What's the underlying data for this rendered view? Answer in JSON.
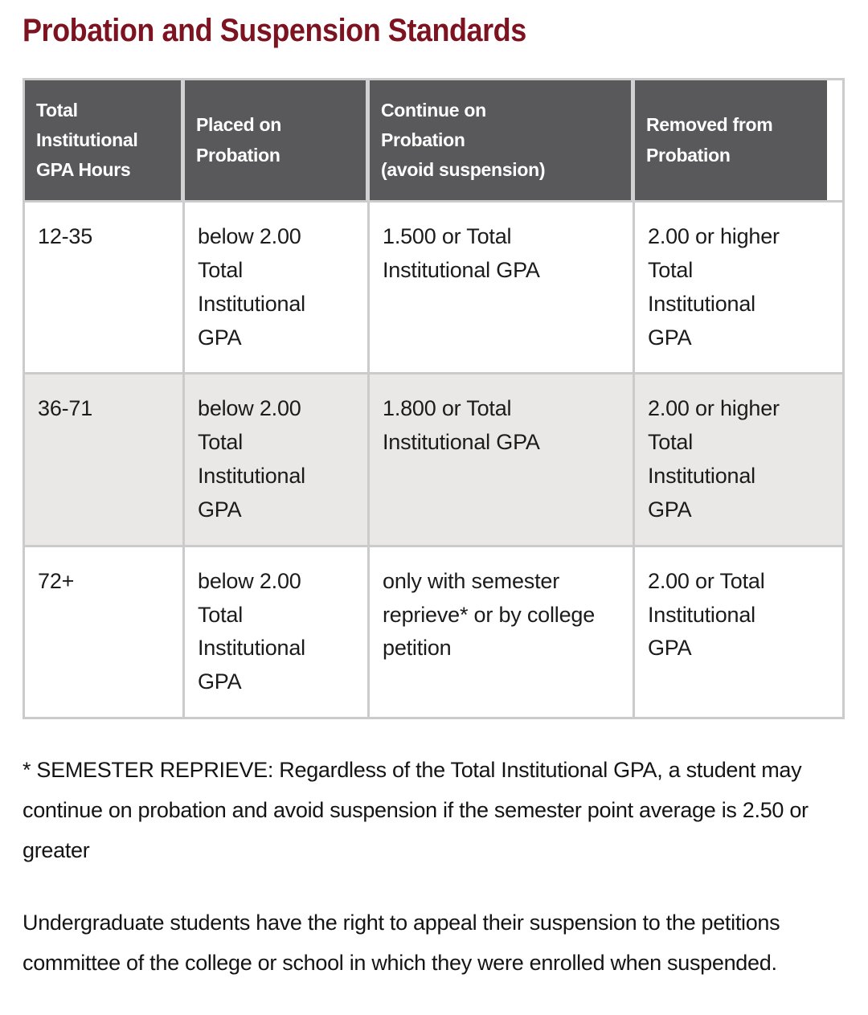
{
  "page_title": "Probation and Suspension Standards",
  "colors": {
    "heading_text": "#7d1321",
    "table_header_bg": "#59585a",
    "table_header_text": "#ffffff",
    "row_alternate_bg": "#e9e8e7",
    "table_border": "#cbcbcb",
    "body_text": "#1b1b1b"
  },
  "table": {
    "headers": [
      "Total\nInstitutional\nGPA Hours",
      "Placed on\nProbation",
      "Continue on\nProbation\n(avoid suspension)",
      "Removed from\nProbation"
    ],
    "rows": [
      {
        "cells": [
          "12-35",
          "below 2.00\nTotal\nInstitutional\nGPA",
          "1.500 or Total\nInstitutional GPA",
          "2.00 or higher\nTotal\nInstitutional\nGPA"
        ]
      },
      {
        "cells": [
          "36-71",
          "below 2.00\nTotal\nInstitutional\nGPA",
          "1.800 or Total\nInstitutional GPA",
          "2.00 or higher\nTotal\nInstitutional\nGPA"
        ]
      },
      {
        "cells": [
          "72+",
          "below 2.00\nTotal\nInstitutional\nGPA",
          "only with semester\nreprieve* or by college\npetition",
          "2.00 or Total\nInstitutional\nGPA"
        ]
      }
    ]
  },
  "notes": {
    "semester_reprieve": "* SEMESTER REPRIEVE: Regardless of the Total Institutional GPA, a student may continue on probation and avoid suspension if the semester point average is 2.50 or greater",
    "appeal": "Undergraduate students have the right to appeal their suspension to the petitions committee of the college or school in which they were enrolled when suspended."
  }
}
